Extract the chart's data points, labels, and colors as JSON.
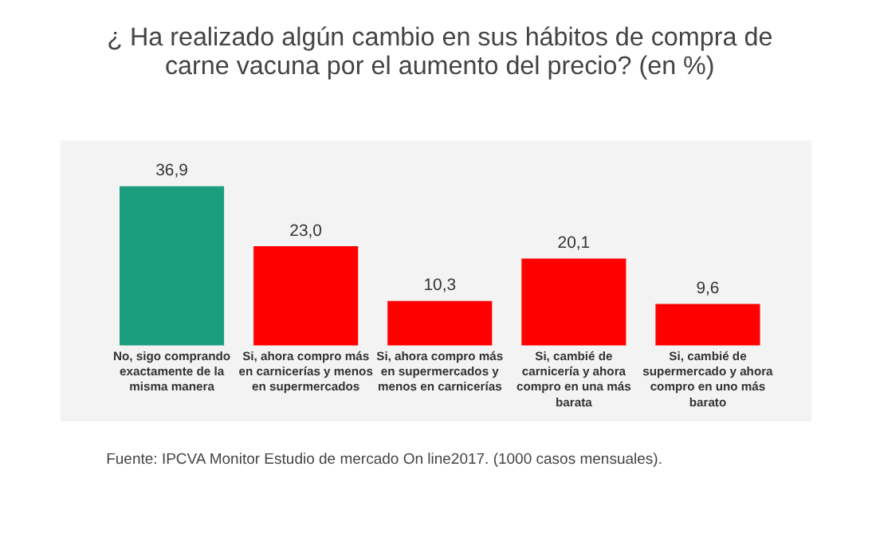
{
  "chart_data": {
    "type": "bar",
    "title": "¿ Ha realizado algún cambio en sus hábitos de compra de carne vacuna por el aumento del precio? (en %)",
    "categories": [
      "No, sigo comprando exactamente de la misma manera",
      "Si, ahora compro más en carnicerías y menos en supermercados",
      "Si, ahora compro más en supermercados y menos en carnicerías",
      "Si, cambié de carnicería y ahora compro en una más barata",
      "Si, cambié de supermercado y ahora compro en uno más barato"
    ],
    "values": [
      36.9,
      23.0,
      10.3,
      20.1,
      9.6
    ],
    "value_labels": [
      "36,9",
      "23,0",
      "10,3",
      "20,1",
      "9,6"
    ],
    "colors": [
      "#1a9e7e",
      "#ff0000",
      "#ff0000",
      "#ff0000",
      "#ff0000"
    ],
    "annotations": [
      "Fuente: IPCVA Monitor Estudio de mercado On line2017. (1000 casos mensuales)."
    ]
  }
}
